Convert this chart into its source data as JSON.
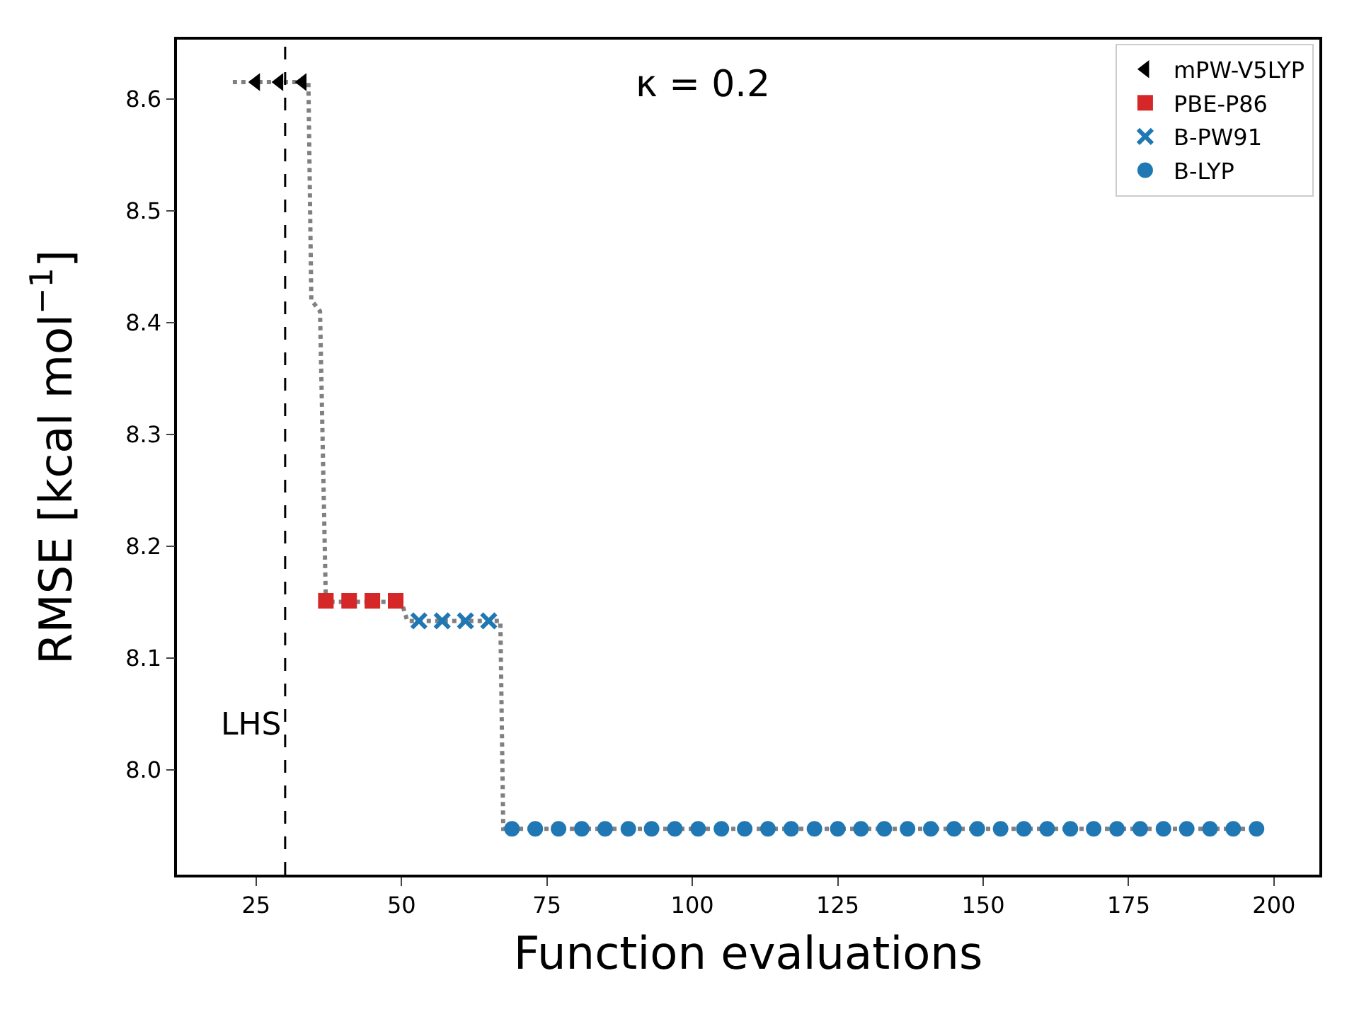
{
  "chart_data": {
    "type": "scatter",
    "xlabel": "Function evaluations",
    "ylabel": "RMSE [kcal mol$^{−1}$]",
    "xlim": [
      11.4,
      207.8
    ],
    "xticks": [
      25,
      50,
      75,
      100,
      125,
      150,
      175,
      200
    ],
    "ylim": [
      7.906,
      8.653
    ],
    "yticks": [
      {
        "value": 8.0,
        "label": "8.0"
      },
      8.1,
      8.2,
      8.3,
      8.4,
      8.5,
      8.6
    ],
    "grid": false,
    "legend": "top right",
    "annotations": [
      "κ = 0.2"
    ],
    "ref_lines": [
      {
        "axis": "x",
        "value": 30,
        "label": "LHS",
        "color": "#000000",
        "line_style": "dashed"
      }
    ],
    "series": [
      {
        "type": "line",
        "color": "#808080",
        "line_style": "dotted",
        "marker": "none",
        "x": [
          21,
          34,
          34.5,
          36,
          37,
          50,
          51,
          67,
          67.5,
          197
        ],
        "values": [
          8.615,
          8.615,
          8.42,
          8.41,
          8.15,
          8.15,
          8.133,
          8.133,
          7.947,
          7.947
        ]
      },
      {
        "name": "mPW-V5LYP",
        "color": "#000000",
        "marker": "triangle",
        "x": [
          25,
          29,
          33
        ],
        "values": [
          8.615,
          8.615,
          8.615
        ]
      },
      {
        "name": "PBE-P86",
        "color": "#d62728",
        "marker": "square",
        "x": [
          37,
          41,
          45,
          49
        ],
        "values": [
          8.151,
          8.151,
          8.151,
          8.151
        ]
      },
      {
        "name": "B-PW91",
        "color": "#1f77b4",
        "marker": "cross",
        "x": [
          53,
          57,
          61,
          65
        ],
        "values": [
          8.133,
          8.133,
          8.133,
          8.133
        ]
      },
      {
        "name": "B-LYP",
        "color": "#1f77b4",
        "marker": "circle",
        "x": [
          69,
          73,
          77,
          81,
          85,
          89,
          93,
          97,
          101,
          105,
          109,
          113,
          117,
          121,
          125,
          129,
          133,
          137,
          141,
          145,
          149,
          153,
          157,
          161,
          165,
          169,
          173,
          177,
          181,
          185,
          189,
          193,
          197
        ],
        "values": [
          7.947,
          7.947,
          7.947,
          7.947,
          7.947,
          7.947,
          7.947,
          7.947,
          7.947,
          7.947,
          7.947,
          7.947,
          7.947,
          7.947,
          7.947,
          7.947,
          7.947,
          7.947,
          7.947,
          7.947,
          7.947,
          7.947,
          7.947,
          7.947,
          7.947,
          7.947,
          7.947,
          7.947,
          7.947,
          7.947,
          7.947,
          7.947,
          7.947
        ]
      }
    ]
  }
}
